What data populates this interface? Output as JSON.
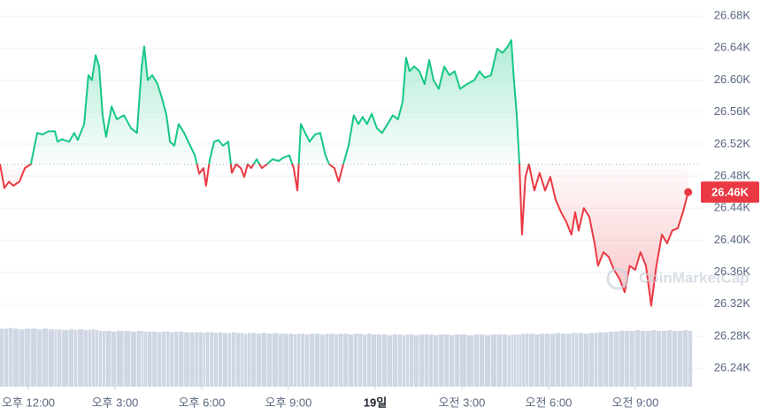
{
  "chart_data": {
    "type": "line",
    "x": [
      -0.98,
      -0.83,
      -0.67,
      -0.52,
      -0.31,
      -0.12,
      0.09,
      0.31,
      0.49,
      0.7,
      0.92,
      1.01,
      1.16,
      1.41,
      1.59,
      1.71,
      1.93,
      2.08,
      2.2,
      2.33,
      2.45,
      2.57,
      2.69,
      2.88,
      3.06,
      3.31,
      3.55,
      3.76,
      3.92,
      4.01,
      4.13,
      4.29,
      4.47,
      4.62,
      4.78,
      4.9,
      5.05,
      5.2,
      5.39,
      5.6,
      5.76,
      5.91,
      6.06,
      6.15,
      6.28,
      6.43,
      6.58,
      6.73,
      6.92,
      7.04,
      7.19,
      7.35,
      7.47,
      7.59,
      7.71,
      7.9,
      8.08,
      8.26,
      8.45,
      8.66,
      8.82,
      9.03,
      9.18,
      9.31,
      9.43,
      9.58,
      9.73,
      9.92,
      10.1,
      10.28,
      10.41,
      10.59,
      10.74,
      10.9,
      11.08,
      11.26,
      11.42,
      11.57,
      11.72,
      11.88,
      12.06,
      12.24,
      12.43,
      12.61,
      12.79,
      12.95,
      13.07,
      13.19,
      13.35,
      13.53,
      13.71,
      13.87,
      14.02,
      14.2,
      14.39,
      14.57,
      14.75,
      14.94,
      15.18,
      15.43,
      15.61,
      15.79,
      16.01,
      16.22,
      16.41,
      16.59,
      16.71,
      16.8,
      16.9,
      16.99,
      17.08,
      17.2,
      17.32,
      17.51,
      17.69,
      17.88,
      18.06,
      18.24,
      18.43,
      18.61,
      18.79,
      18.92,
      19.04,
      19.22,
      19.41,
      19.59,
      19.71,
      19.9,
      20.08,
      20.26,
      20.45,
      20.63,
      20.81,
      21.0,
      21.18,
      21.37,
      21.55,
      21.73,
      21.92,
      22.1,
      22.28,
      22.47,
      22.65,
      22.83
    ],
    "values": [
      26495,
      26465,
      26473,
      26468,
      26473,
      26490,
      26495,
      26534,
      26532,
      26536,
      26536,
      26523,
      26526,
      26523,
      26534,
      26525,
      26545,
      26606,
      26600,
      26631,
      26617,
      26556,
      26529,
      26567,
      26551,
      26556,
      26540,
      26534,
      26617,
      26642,
      26600,
      26606,
      26595,
      26578,
      26556,
      26523,
      26518,
      26545,
      26534,
      26518,
      26506,
      26483,
      26490,
      26468,
      26501,
      26523,
      26525,
      26518,
      26523,
      26484,
      26495,
      26490,
      26479,
      26495,
      26490,
      26501,
      26490,
      26495,
      26501,
      26499,
      26503,
      26506,
      26490,
      26462,
      26545,
      26534,
      26523,
      26532,
      26534,
      26506,
      26495,
      26490,
      26473,
      26495,
      26518,
      26556,
      26545,
      26554,
      26545,
      26558,
      26540,
      26534,
      26545,
      26556,
      26551,
      26573,
      26628,
      26611,
      26617,
      26611,
      26595,
      26625,
      26600,
      26589,
      26617,
      26606,
      26611,
      26589,
      26595,
      26600,
      26611,
      26603,
      26606,
      26639,
      26634,
      26642,
      26650,
      26600,
      26556,
      26495,
      26407,
      26479,
      26495,
      26462,
      26484,
      26462,
      26479,
      26451,
      26435,
      26423,
      26407,
      26435,
      26412,
      26440,
      26429,
      26396,
      26368,
      26385,
      26379,
      26363,
      26352,
      26335,
      26368,
      26363,
      26385,
      26368,
      26318,
      26368,
      26407,
      26396,
      26412,
      26415,
      26435,
      26460
    ],
    "volume": [
      80,
      80,
      81,
      80,
      79,
      80,
      80,
      79,
      80,
      79,
      79,
      79,
      78,
      79,
      78,
      79,
      78,
      78,
      79,
      78,
      77,
      77,
      77,
      76,
      77,
      77,
      76,
      77,
      77,
      76,
      76,
      76,
      75,
      76,
      76,
      75,
      76,
      76,
      75,
      75,
      75,
      75,
      74,
      75,
      75,
      74,
      75,
      74,
      74,
      75,
      74,
      74,
      73,
      74,
      74,
      73,
      74,
      73,
      74,
      73,
      73,
      73,
      72,
      73,
      73,
      72,
      73,
      73,
      72,
      73,
      73,
      72,
      73,
      73,
      72,
      73,
      73,
      72,
      73,
      72,
      72,
      72,
      71,
      72,
      72,
      71,
      72,
      72,
      71,
      72,
      72,
      72,
      71,
      72,
      72,
      71,
      72,
      72,
      71,
      72,
      72,
      71,
      72,
      72,
      72,
      71,
      72,
      72,
      72,
      72,
      73,
      73,
      73,
      72,
      73,
      73,
      73,
      74,
      73,
      73,
      74,
      74,
      74,
      73,
      74,
      74,
      75,
      75,
      76,
      76,
      77,
      77,
      77,
      78,
      77,
      77,
      78,
      77,
      77,
      78,
      77,
      77,
      78,
      77
    ],
    "volume_lim": [
      0,
      100
    ],
    "baseline": 26495,
    "last_price_label": "26.46K",
    "watermark": "CoinMarketCap",
    "colors": {
      "up": "#16c784",
      "down": "#ea3943",
      "volume": "#cfd6e4"
    },
    "xlim": [
      -0.98,
      22.9
    ],
    "xticks": [
      {
        "value": 0,
        "label": "오후 12:00"
      },
      {
        "value": 3,
        "label": "오후 3:00"
      },
      {
        "value": 6,
        "label": "오후 6:00"
      },
      {
        "value": 9,
        "label": "오후 9:00"
      },
      {
        "value": 12,
        "label": "19일",
        "bold": true
      },
      {
        "value": 15,
        "label": "오전 3:00"
      },
      {
        "value": 18,
        "label": "오전 6:00"
      },
      {
        "value": 21,
        "label": "오전 9:00"
      }
    ],
    "ylim": [
      26217,
      26700
    ],
    "yticks": [
      {
        "value": 26240,
        "label": "26.24K"
      },
      {
        "value": 26280,
        "label": "26.28K"
      },
      {
        "value": 26320,
        "label": "26.32K"
      },
      {
        "value": 26360,
        "label": "26.36K"
      },
      {
        "value": 26400,
        "label": "26.40K"
      },
      {
        "value": 26440,
        "label": "26.44K"
      },
      {
        "value": 26480,
        "label": "26.48K"
      },
      {
        "value": 26520,
        "label": "26.52K"
      },
      {
        "value": 26560,
        "label": "26.56K"
      },
      {
        "value": 26600,
        "label": "26.60K"
      },
      {
        "value": 26640,
        "label": "26.64K"
      },
      {
        "value": 26680,
        "label": "26.68K"
      }
    ],
    "grid": true
  }
}
